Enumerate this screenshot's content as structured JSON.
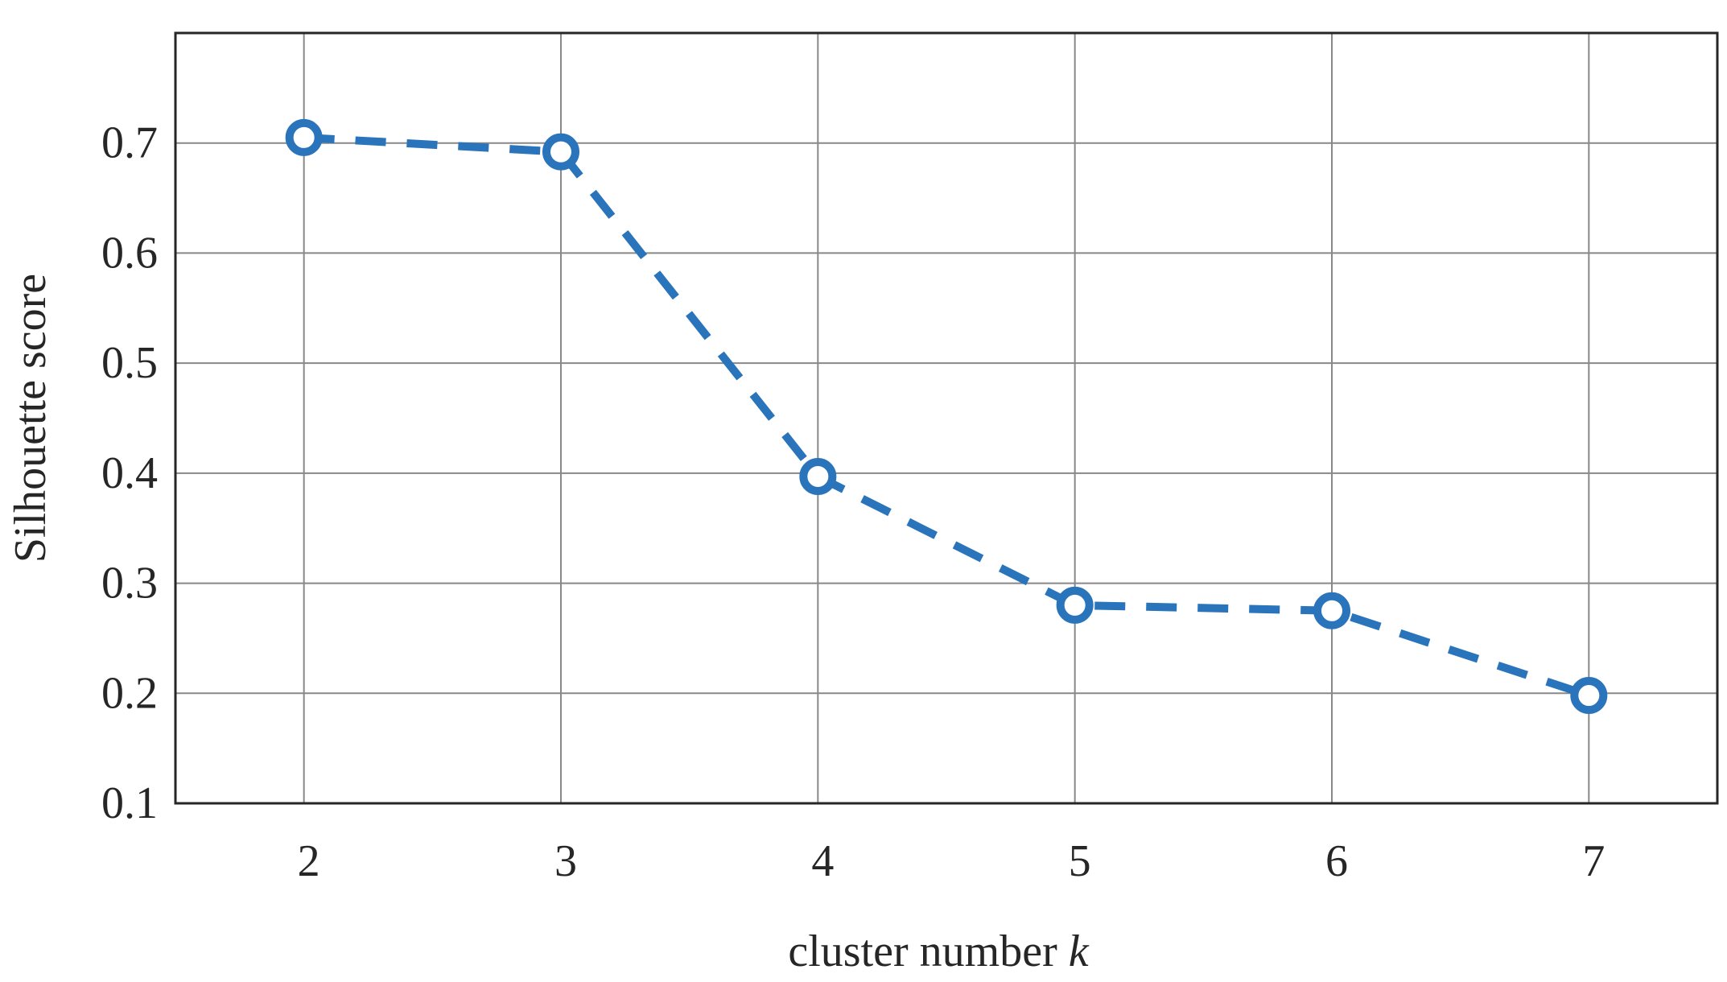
{
  "chart_data": {
    "type": "line",
    "title": "",
    "xlabel_main": "cluster number ",
    "xlabel_italic": "k",
    "ylabel": "Silhouette score",
    "x": [
      2,
      3,
      4,
      5,
      6,
      7
    ],
    "series": [
      {
        "values": [
          0.705,
          0.692,
          0.397,
          0.28,
          0.275,
          0.198
        ],
        "line_style": "dashed",
        "marker": "circle",
        "color": "#2a74bb"
      }
    ],
    "xlim": [
      1.5,
      7.5
    ],
    "ylim": [
      0.1,
      0.8
    ],
    "xticks": [
      2,
      3,
      4,
      5,
      6,
      7
    ],
    "yticks": [
      0.1,
      0.2,
      0.3,
      0.4,
      0.5,
      0.6,
      0.7
    ],
    "ytick_labels": [
      "0.1",
      "0.2",
      "0.3",
      "0.4",
      "0.5",
      "0.6",
      "0.7"
    ],
    "xtick_labels": [
      "2",
      "3",
      "4",
      "5",
      "6",
      "7"
    ],
    "grid": true,
    "colors": {
      "series": "#2a74bb",
      "grid": "#888888",
      "axis": "#262626"
    }
  }
}
